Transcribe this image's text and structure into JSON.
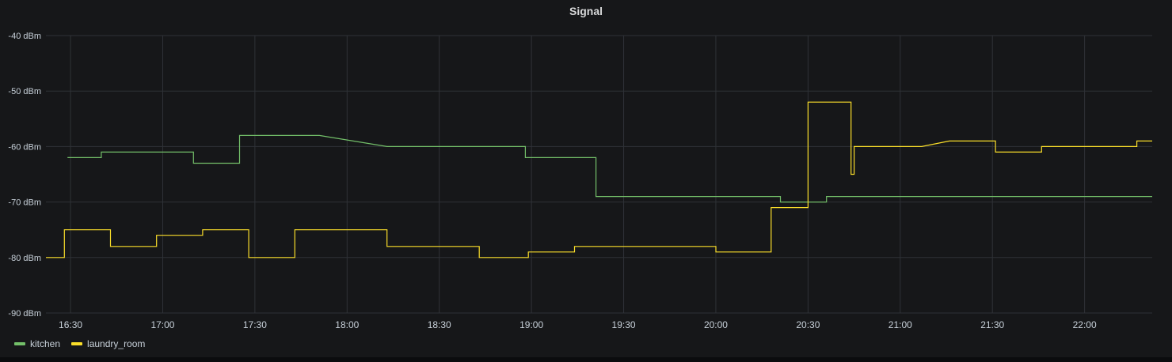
{
  "chart_data": {
    "type": "line",
    "title": "Signal",
    "y_unit": "dBm",
    "ylim": [
      -90,
      -40
    ],
    "y_ticks": [
      -40,
      -50,
      -60,
      -70,
      -80,
      -90
    ],
    "y_tick_labels": [
      "-40 dBm",
      "-50 dBm",
      "-60 dBm",
      "-70 dBm",
      "-80 dBm",
      "-90 dBm"
    ],
    "xlim": [
      "16:22",
      "22:22"
    ],
    "x_ticks": [
      "16:30",
      "17:00",
      "17:30",
      "18:00",
      "18:30",
      "19:00",
      "19:30",
      "20:00",
      "20:30",
      "21:00",
      "21:30",
      "22:00"
    ],
    "grid": true,
    "legend_position": "bottom-left",
    "series": [
      {
        "name": "kitchen",
        "color": "#73bf69",
        "step": false,
        "points": [
          [
            "16:29",
            -62
          ],
          [
            "16:40",
            -62
          ],
          [
            "16:40",
            -61
          ],
          [
            "17:10",
            -61
          ],
          [
            "17:10",
            -63
          ],
          [
            "17:25",
            -63
          ],
          [
            "17:25",
            -58
          ],
          [
            "17:51",
            -58
          ],
          [
            "18:13",
            -60
          ],
          [
            "18:58",
            -60
          ],
          [
            "18:58",
            -62
          ],
          [
            "19:21",
            -62
          ],
          [
            "19:21",
            -69
          ],
          [
            "20:21",
            -69
          ],
          [
            "20:21",
            -70
          ],
          [
            "20:36",
            -70
          ],
          [
            "20:36",
            -69
          ],
          [
            "22:22",
            -69
          ]
        ]
      },
      {
        "name": "laundry_room",
        "color": "#fade2a",
        "step": false,
        "points": [
          [
            "16:22",
            -80
          ],
          [
            "16:28",
            -80
          ],
          [
            "16:28",
            -75
          ],
          [
            "16:43",
            -75
          ],
          [
            "16:43",
            -78
          ],
          [
            "16:58",
            -78
          ],
          [
            "16:58",
            -76
          ],
          [
            "17:13",
            -76
          ],
          [
            "17:13",
            -75
          ],
          [
            "17:28",
            -75
          ],
          [
            "17:28",
            -80
          ],
          [
            "17:43",
            -80
          ],
          [
            "17:43",
            -75
          ],
          [
            "18:13",
            -75
          ],
          [
            "18:13",
            -78
          ],
          [
            "18:43",
            -78
          ],
          [
            "18:43",
            -80
          ],
          [
            "18:59",
            -80
          ],
          [
            "18:59",
            -79
          ],
          [
            "19:14",
            -79
          ],
          [
            "19:14",
            -78
          ],
          [
            "20:00",
            -78
          ],
          [
            "20:00",
            -79
          ],
          [
            "20:18",
            -79
          ],
          [
            "20:18",
            -71
          ],
          [
            "20:30",
            -71
          ],
          [
            "20:30",
            -52
          ],
          [
            "20:44",
            -52
          ],
          [
            "20:44",
            -65
          ],
          [
            "20:45",
            -65
          ],
          [
            "20:45",
            -60
          ],
          [
            "21:07",
            -60
          ],
          [
            "21:16",
            -59
          ],
          [
            "21:31",
            -59
          ],
          [
            "21:31",
            -61
          ],
          [
            "21:46",
            -61
          ],
          [
            "21:46",
            -60
          ],
          [
            "22:17",
            -60
          ],
          [
            "22:17",
            -59
          ],
          [
            "22:22",
            -59
          ]
        ]
      }
    ]
  }
}
